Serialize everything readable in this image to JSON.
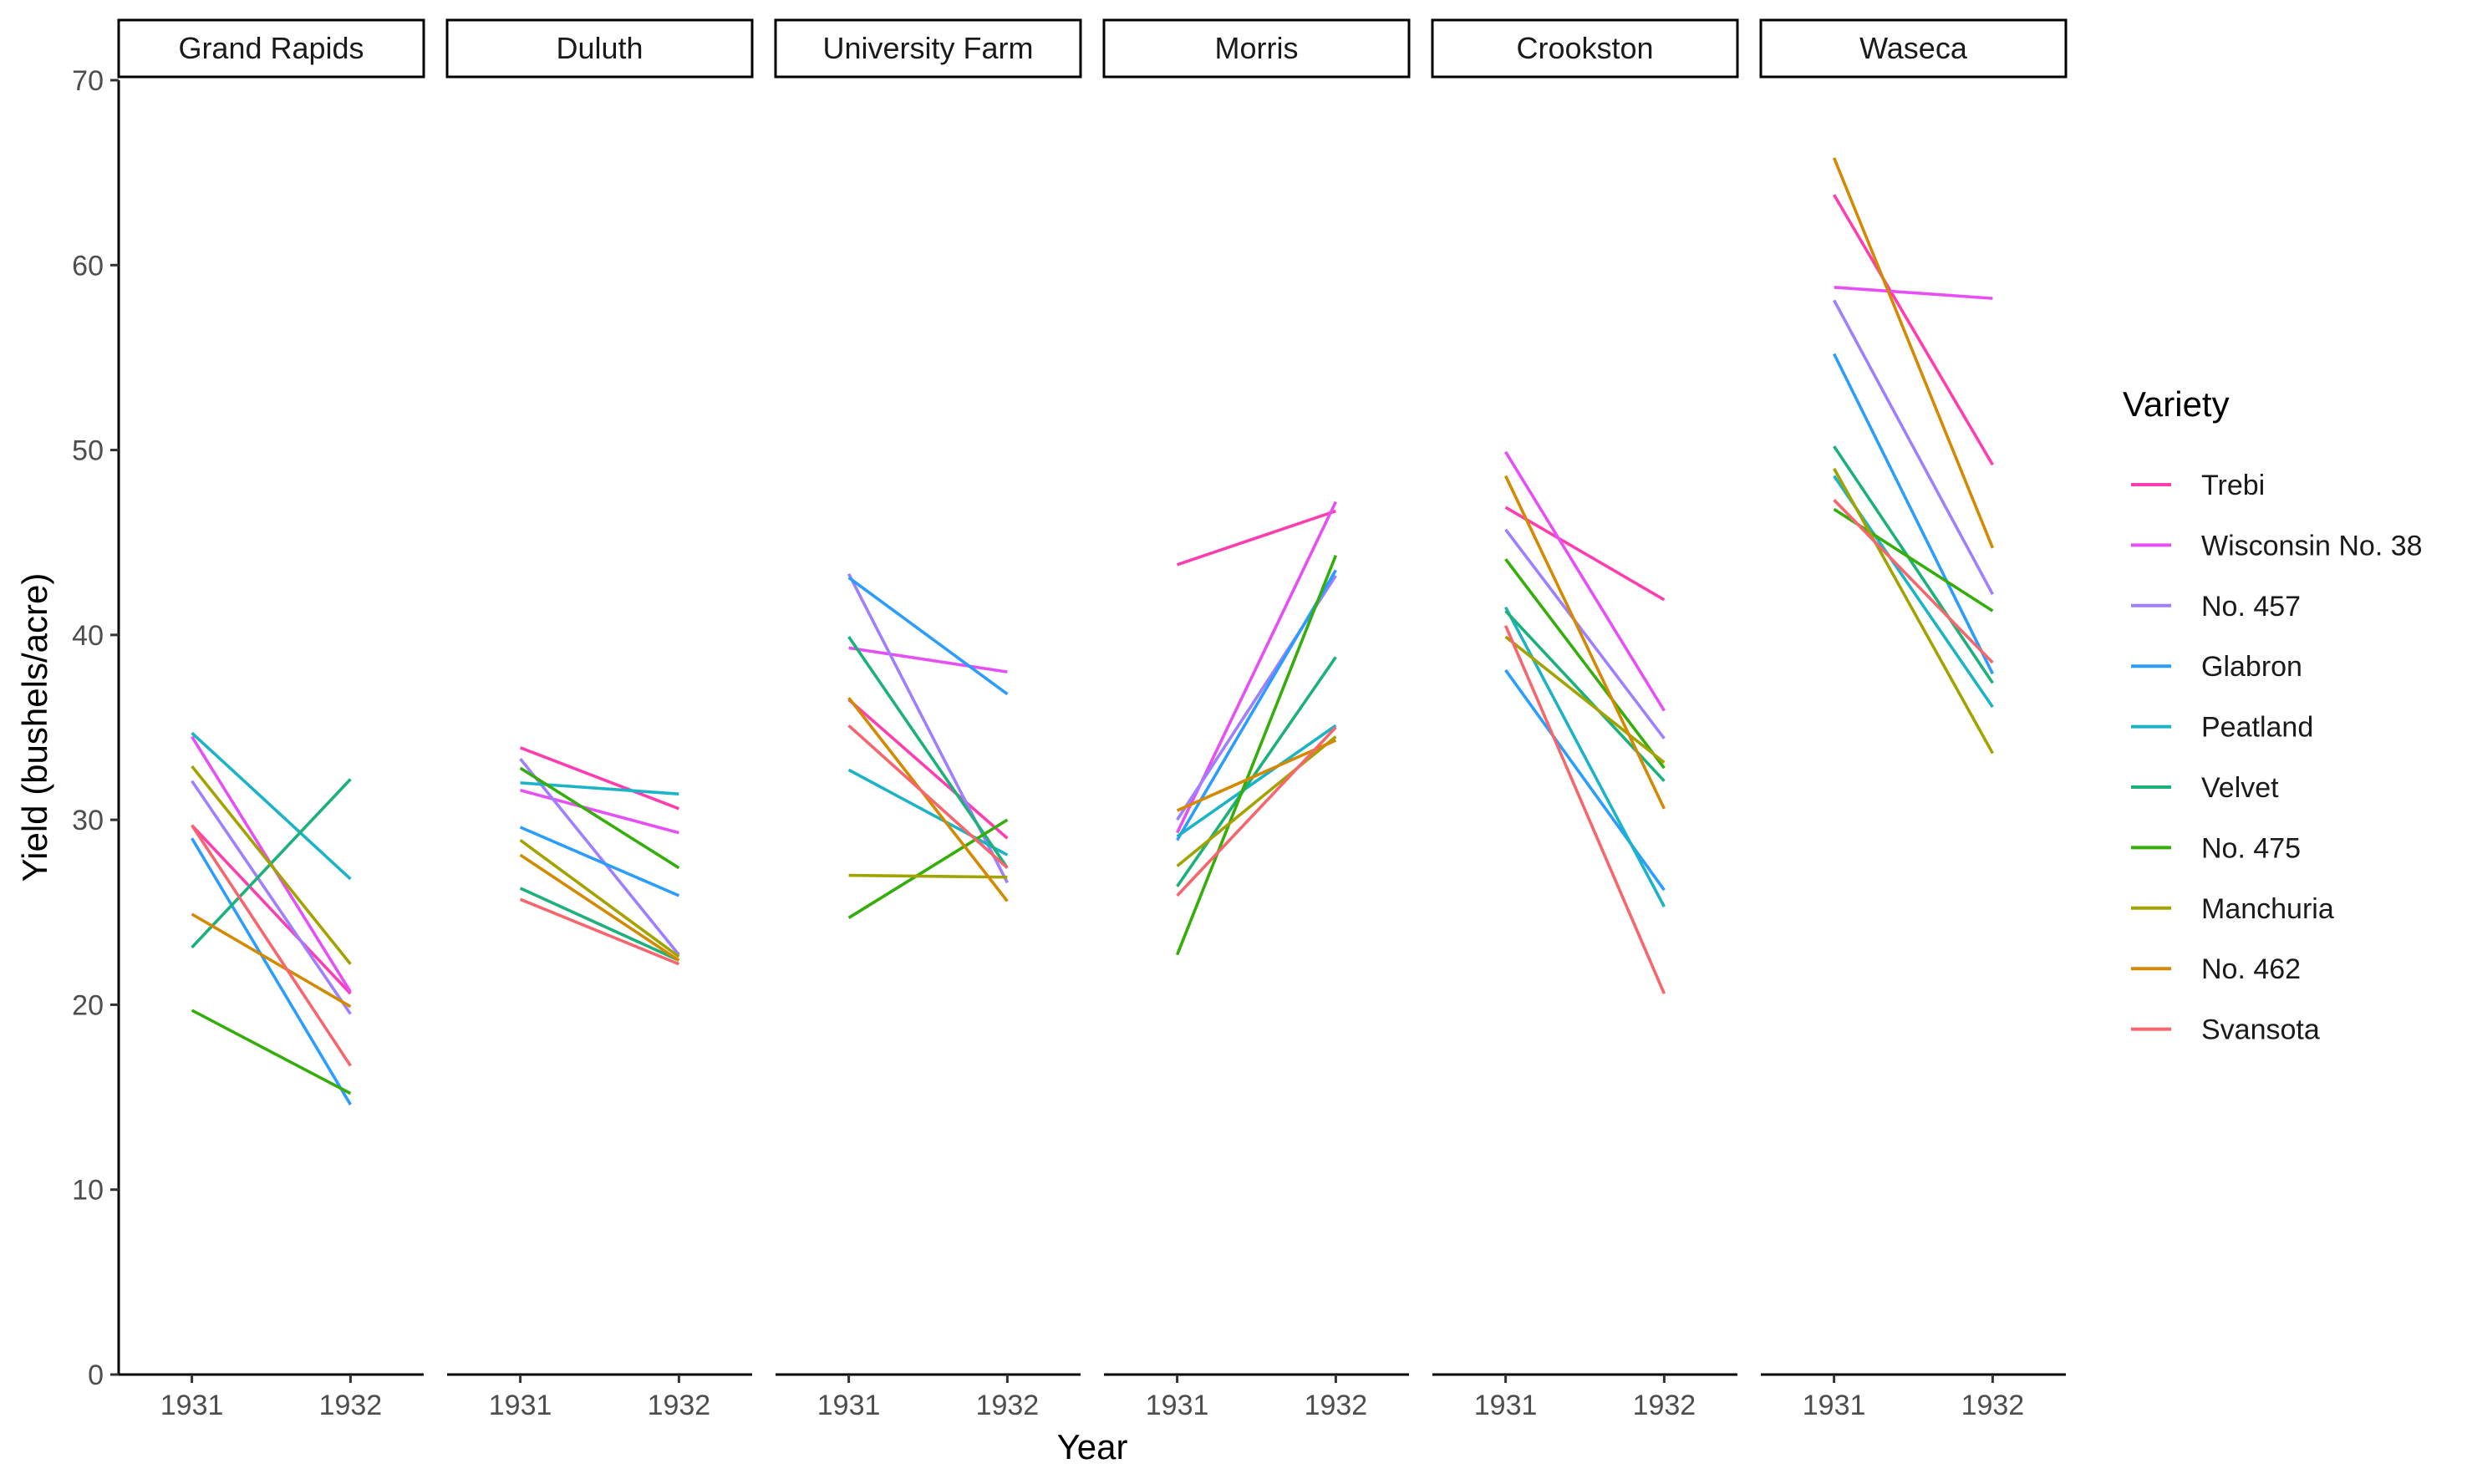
{
  "chart_data": {
    "type": "line",
    "facet_by": "site",
    "x": [
      "1931",
      "1932"
    ],
    "xlabel": "Year",
    "ylabel": "Yield (bushels/acre)",
    "ylim": [
      0,
      70
    ],
    "yticks": [
      0,
      10,
      20,
      30,
      40,
      50,
      60,
      70
    ],
    "grid": false,
    "legend": {
      "title": "Variety",
      "position": "right",
      "entries": [
        {
          "name": "Trebi",
          "color": "#FF3DAF"
        },
        {
          "name": "Wisconsin No. 38",
          "color": "#E64FF5"
        },
        {
          "name": "No. 457",
          "color": "#9F7FFF"
        },
        {
          "name": "Glabron",
          "color": "#2A9DFF"
        },
        {
          "name": "Peatland",
          "color": "#1BB3C6"
        },
        {
          "name": "Velvet",
          "color": "#1DB17A"
        },
        {
          "name": "No. 475",
          "color": "#35AE0B"
        },
        {
          "name": "Manchuria",
          "color": "#A3A300"
        },
        {
          "name": "No. 462",
          "color": "#D48A00"
        },
        {
          "name": "Svansota",
          "color": "#F7656D"
        }
      ]
    },
    "panels": [
      {
        "site": "Grand Rapids",
        "series": [
          {
            "variety": "Trebi",
            "values": [
              29.7,
              20.6
            ]
          },
          {
            "variety": "Wisconsin No. 38",
            "values": [
              34.5,
              20.7
            ]
          },
          {
            "variety": "No. 457",
            "values": [
              32.1,
              19.5
            ]
          },
          {
            "variety": "Glabron",
            "values": [
              29.0,
              14.6
            ]
          },
          {
            "variety": "Peatland",
            "values": [
              34.7,
              26.8
            ]
          },
          {
            "variety": "Velvet",
            "values": [
              23.1,
              32.2
            ]
          },
          {
            "variety": "No. 475",
            "values": [
              19.7,
              15.2
            ]
          },
          {
            "variety": "Manchuria",
            "values": [
              32.9,
              22.2
            ]
          },
          {
            "variety": "No. 462",
            "values": [
              24.9,
              19.9
            ]
          },
          {
            "variety": "Svansota",
            "values": [
              29.7,
              16.7
            ]
          }
        ]
      },
      {
        "site": "Duluth",
        "series": [
          {
            "variety": "Trebi",
            "values": [
              33.9,
              30.6
            ]
          },
          {
            "variety": "Wisconsin No. 38",
            "values": [
              31.6,
              29.3
            ]
          },
          {
            "variety": "No. 457",
            "values": [
              33.3,
              22.7
            ]
          },
          {
            "variety": "Glabron",
            "values": [
              29.6,
              25.9
            ]
          },
          {
            "variety": "Peatland",
            "values": [
              32.0,
              31.4
            ]
          },
          {
            "variety": "Velvet",
            "values": [
              26.3,
              22.4
            ]
          },
          {
            "variety": "No. 475",
            "values": [
              32.8,
              27.4
            ]
          },
          {
            "variety": "Manchuria",
            "values": [
              28.9,
              22.6
            ]
          },
          {
            "variety": "No. 462",
            "values": [
              28.1,
              22.4
            ]
          },
          {
            "variety": "Svansota",
            "values": [
              25.7,
              22.2
            ]
          }
        ]
      },
      {
        "site": "University Farm",
        "series": [
          {
            "variety": "Trebi",
            "values": [
              36.5,
              29.0
            ]
          },
          {
            "variety": "Wisconsin No. 38",
            "values": [
              39.3,
              38.0
            ]
          },
          {
            "variety": "No. 457",
            "values": [
              43.3,
              26.6
            ]
          },
          {
            "variety": "Glabron",
            "values": [
              43.1,
              36.8
            ]
          },
          {
            "variety": "Peatland",
            "values": [
              32.7,
              28.1
            ]
          },
          {
            "variety": "Velvet",
            "values": [
              39.9,
              27.4
            ]
          },
          {
            "variety": "No. 475",
            "values": [
              24.7,
              30.0
            ]
          },
          {
            "variety": "Manchuria",
            "values": [
              27.0,
              26.9
            ]
          },
          {
            "variety": "No. 462",
            "values": [
              36.6,
              25.6
            ]
          },
          {
            "variety": "Svansota",
            "values": [
              35.1,
              27.4
            ]
          }
        ]
      },
      {
        "site": "Morris",
        "series": [
          {
            "variety": "Trebi",
            "values": [
              43.8,
              46.7
            ]
          },
          {
            "variety": "Wisconsin No. 38",
            "values": [
              29.3,
              47.2
            ]
          },
          {
            "variety": "No. 457",
            "values": [
              30.0,
              43.2
            ]
          },
          {
            "variety": "Glabron",
            "values": [
              28.9,
              43.5
            ]
          },
          {
            "variety": "Peatland",
            "values": [
              29.1,
              35.1
            ]
          },
          {
            "variety": "Velvet",
            "values": [
              26.4,
              38.8
            ]
          },
          {
            "variety": "No. 475",
            "values": [
              22.7,
              44.3
            ]
          },
          {
            "variety": "Manchuria",
            "values": [
              27.5,
              34.5
            ]
          },
          {
            "variety": "No. 462",
            "values": [
              30.5,
              34.3
            ]
          },
          {
            "variety": "Svansota",
            "values": [
              25.9,
              35.0
            ]
          }
        ]
      },
      {
        "site": "Crookston",
        "series": [
          {
            "variety": "Trebi",
            "values": [
              46.9,
              41.9
            ]
          },
          {
            "variety": "Wisconsin No. 38",
            "values": [
              49.9,
              35.9
            ]
          },
          {
            "variety": "No. 457",
            "values": [
              45.7,
              34.4
            ]
          },
          {
            "variety": "Glabron",
            "values": [
              38.1,
              26.2
            ]
          },
          {
            "variety": "Peatland",
            "values": [
              41.5,
              25.3
            ]
          },
          {
            "variety": "Velvet",
            "values": [
              41.3,
              32.1
            ]
          },
          {
            "variety": "No. 475",
            "values": [
              44.1,
              32.8
            ]
          },
          {
            "variety": "Manchuria",
            "values": [
              39.9,
              33.1
            ]
          },
          {
            "variety": "No. 462",
            "values": [
              48.6,
              30.6
            ]
          },
          {
            "variety": "Svansota",
            "values": [
              40.5,
              20.6
            ]
          }
        ]
      },
      {
        "site": "Waseca",
        "series": [
          {
            "variety": "Trebi",
            "values": [
              63.8,
              49.2
            ]
          },
          {
            "variety": "Wisconsin No. 38",
            "values": [
              58.8,
              58.2
            ]
          },
          {
            "variety": "No. 457",
            "values": [
              58.1,
              42.2
            ]
          },
          {
            "variety": "Glabron",
            "values": [
              55.2,
              37.9
            ]
          },
          {
            "variety": "Peatland",
            "values": [
              48.6,
              36.1
            ]
          },
          {
            "variety": "Velvet",
            "values": [
              50.2,
              37.4
            ]
          },
          {
            "variety": "No. 475",
            "values": [
              46.8,
              41.3
            ]
          },
          {
            "variety": "Manchuria",
            "values": [
              49.0,
              33.6
            ]
          },
          {
            "variety": "No. 462",
            "values": [
              65.8,
              44.7
            ]
          },
          {
            "variety": "Svansota",
            "values": [
              47.3,
              38.5
            ]
          }
        ]
      }
    ]
  }
}
